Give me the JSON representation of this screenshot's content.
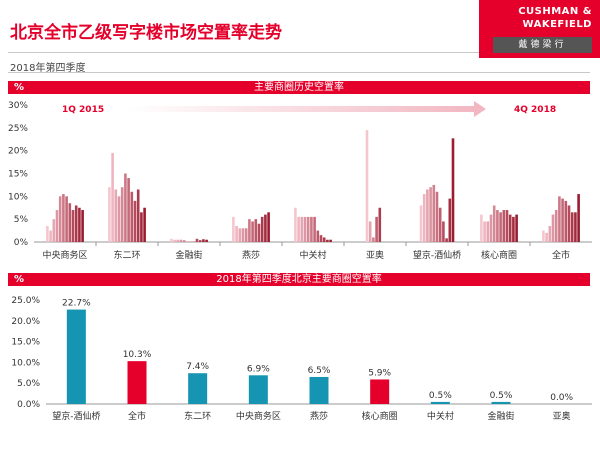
{
  "header": {
    "title": "北京全市乙级写字楼市场空置率走势",
    "subtitle": "2018年第四季度",
    "logo_line1": "CUSHMAN &",
    "logo_line2": "WAKEFIELD",
    "logo_line3": "戴德梁行"
  },
  "colors": {
    "accent": "#e4002b",
    "teal": "#1695b3",
    "band": "#e4002b"
  },
  "chart_data": [
    {
      "type": "bar",
      "title": "主要商圈历史空置率",
      "ylabel": "%",
      "ylim": [
        0,
        30
      ],
      "yticks": [
        "0%",
        "5%",
        "10%",
        "15%",
        "20%",
        "25%",
        "30%"
      ],
      "start_label": "1Q 2015",
      "end_label": "4Q 2018",
      "groups": [
        {
          "name": "中央商务区",
          "values": [
            3.5,
            2.5,
            5,
            7,
            10,
            10.5,
            10,
            8.5,
            7,
            8,
            7.5,
            7
          ]
        },
        {
          "name": "东二环",
          "values": [
            12,
            19.5,
            11.5,
            10,
            12,
            15,
            14,
            11,
            9,
            11.5,
            6.5,
            7.5
          ]
        },
        {
          "name": "金融街",
          "values": [
            0.7,
            0.5,
            0.5,
            0.5,
            0.4,
            0.1,
            0.1,
            0.1,
            0.7,
            0.4,
            0.6,
            0.5
          ]
        },
        {
          "name": "燕莎",
          "values": [
            5.5,
            3.5,
            3,
            3,
            3,
            5,
            4.5,
            5,
            4,
            5.5,
            6,
            6.5
          ]
        },
        {
          "name": "中关村",
          "values": [
            7.5,
            5.5,
            5.5,
            5.5,
            5.5,
            5.5,
            5.5,
            2.5,
            1.5,
            1,
            0.5,
            0.5
          ]
        },
        {
          "name": "亚奥",
          "values": [
            24.5,
            4.5,
            1,
            5.5,
            7.5,
            0
          ]
        },
        {
          "name": "望京-酒仙桥",
          "values": [
            8,
            10.5,
            11.5,
            12,
            12.5,
            11,
            7.5,
            4.5,
            0.8,
            9.5,
            22.7
          ]
        },
        {
          "name": "核心商圈",
          "values": [
            6,
            4.5,
            4.5,
            6,
            8,
            7,
            6.5,
            7,
            7,
            6,
            5.5,
            6
          ]
        },
        {
          "name": "全市",
          "values": [
            2.5,
            2,
            3.5,
            6,
            7,
            10,
            9.5,
            9,
            8,
            6.5,
            6.5,
            10.5
          ]
        }
      ]
    },
    {
      "type": "bar",
      "title": "2018年第四季度北京主要商圈空置率",
      "ylabel": "%",
      "ylim": [
        0,
        25
      ],
      "yticks": [
        "0.0%",
        "5.0%",
        "10.0%",
        "15.0%",
        "20.0%",
        "25.0%"
      ],
      "categories": [
        "望京-酒仙桥",
        "全市",
        "东二环",
        "中央商务区",
        "燕莎",
        "核心商圈",
        "中关村",
        "金融街",
        "亚奥"
      ],
      "values": [
        22.7,
        10.3,
        7.4,
        6.9,
        6.5,
        5.9,
        0.5,
        0.5,
        0.0
      ],
      "value_labels": [
        "22.7%",
        "10.3%",
        "7.4%",
        "6.9%",
        "6.5%",
        "5.9%",
        "0.5%",
        "0.5%",
        "0.0%"
      ],
      "highlight": [
        "全市",
        "核心商圈"
      ]
    }
  ]
}
